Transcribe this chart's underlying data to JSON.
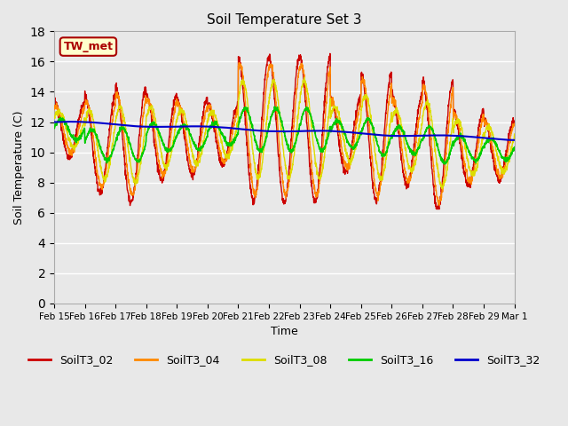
{
  "title": "Soil Temperature Set 3",
  "xlabel": "Time",
  "ylabel": "Soil Temperature (C)",
  "ylim": [
    0,
    18
  ],
  "yticks": [
    0,
    2,
    4,
    6,
    8,
    10,
    12,
    14,
    16,
    18
  ],
  "annotation": "TW_met",
  "annotation_box_color": "#ffffcc",
  "annotation_box_edge": "#aa0000",
  "series_colors": {
    "SoilT3_02": "#cc0000",
    "SoilT3_04": "#ff8800",
    "SoilT3_08": "#dddd00",
    "SoilT3_16": "#00cc00",
    "SoilT3_32": "#0000cc"
  },
  "date_labels": [
    "Feb 15",
    "Feb 16",
    "Feb 17",
    "Feb 18",
    "Feb 19",
    "Feb 20",
    "Feb 21",
    "Feb 22",
    "Feb 23",
    "Feb 24",
    "Feb 25",
    "Feb 26",
    "Feb 27",
    "Feb 28",
    "Feb 29",
    "Mar 1"
  ],
  "num_days": 15,
  "points_per_day": 144,
  "bg_color": "#e8e8e8",
  "grid_color": "#ffffff",
  "figsize": [
    6.4,
    4.8
  ],
  "dpi": 100
}
